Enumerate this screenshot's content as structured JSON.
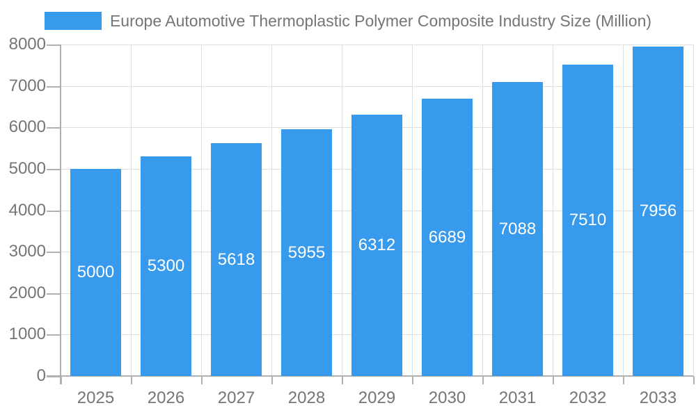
{
  "legend": {
    "label": "Europe Automotive Thermoplastic Polymer Composite Industry Size (Million)"
  },
  "colors": {
    "bar": "#389AEC",
    "grid": "#DEDEDE",
    "axis": "#B0B0B0",
    "text": "#757575",
    "value_label": "#FFFFFF",
    "background": "#FFFFFF"
  },
  "chart_data": {
    "type": "bar",
    "title": "Europe Automotive Thermoplastic Polymer Composite Industry Size (Million)",
    "categories": [
      "2025",
      "2026",
      "2027",
      "2028",
      "2029",
      "2030",
      "2031",
      "2032",
      "2033"
    ],
    "values": [
      5000,
      5300,
      5618,
      5955,
      6312,
      6689,
      7088,
      7510,
      7956
    ],
    "value_labels": "inside-center",
    "xlabel": "",
    "ylabel": "",
    "ylim": [
      0,
      8000
    ],
    "y_ticks": [
      0,
      1000,
      2000,
      3000,
      4000,
      5000,
      6000,
      7000,
      8000
    ],
    "y_tick_labels": [
      "0",
      "1000",
      "2000",
      "3000",
      "4000",
      "5000",
      "6000",
      "7000",
      "8000"
    ],
    "grid": true,
    "legend_position": "top"
  }
}
